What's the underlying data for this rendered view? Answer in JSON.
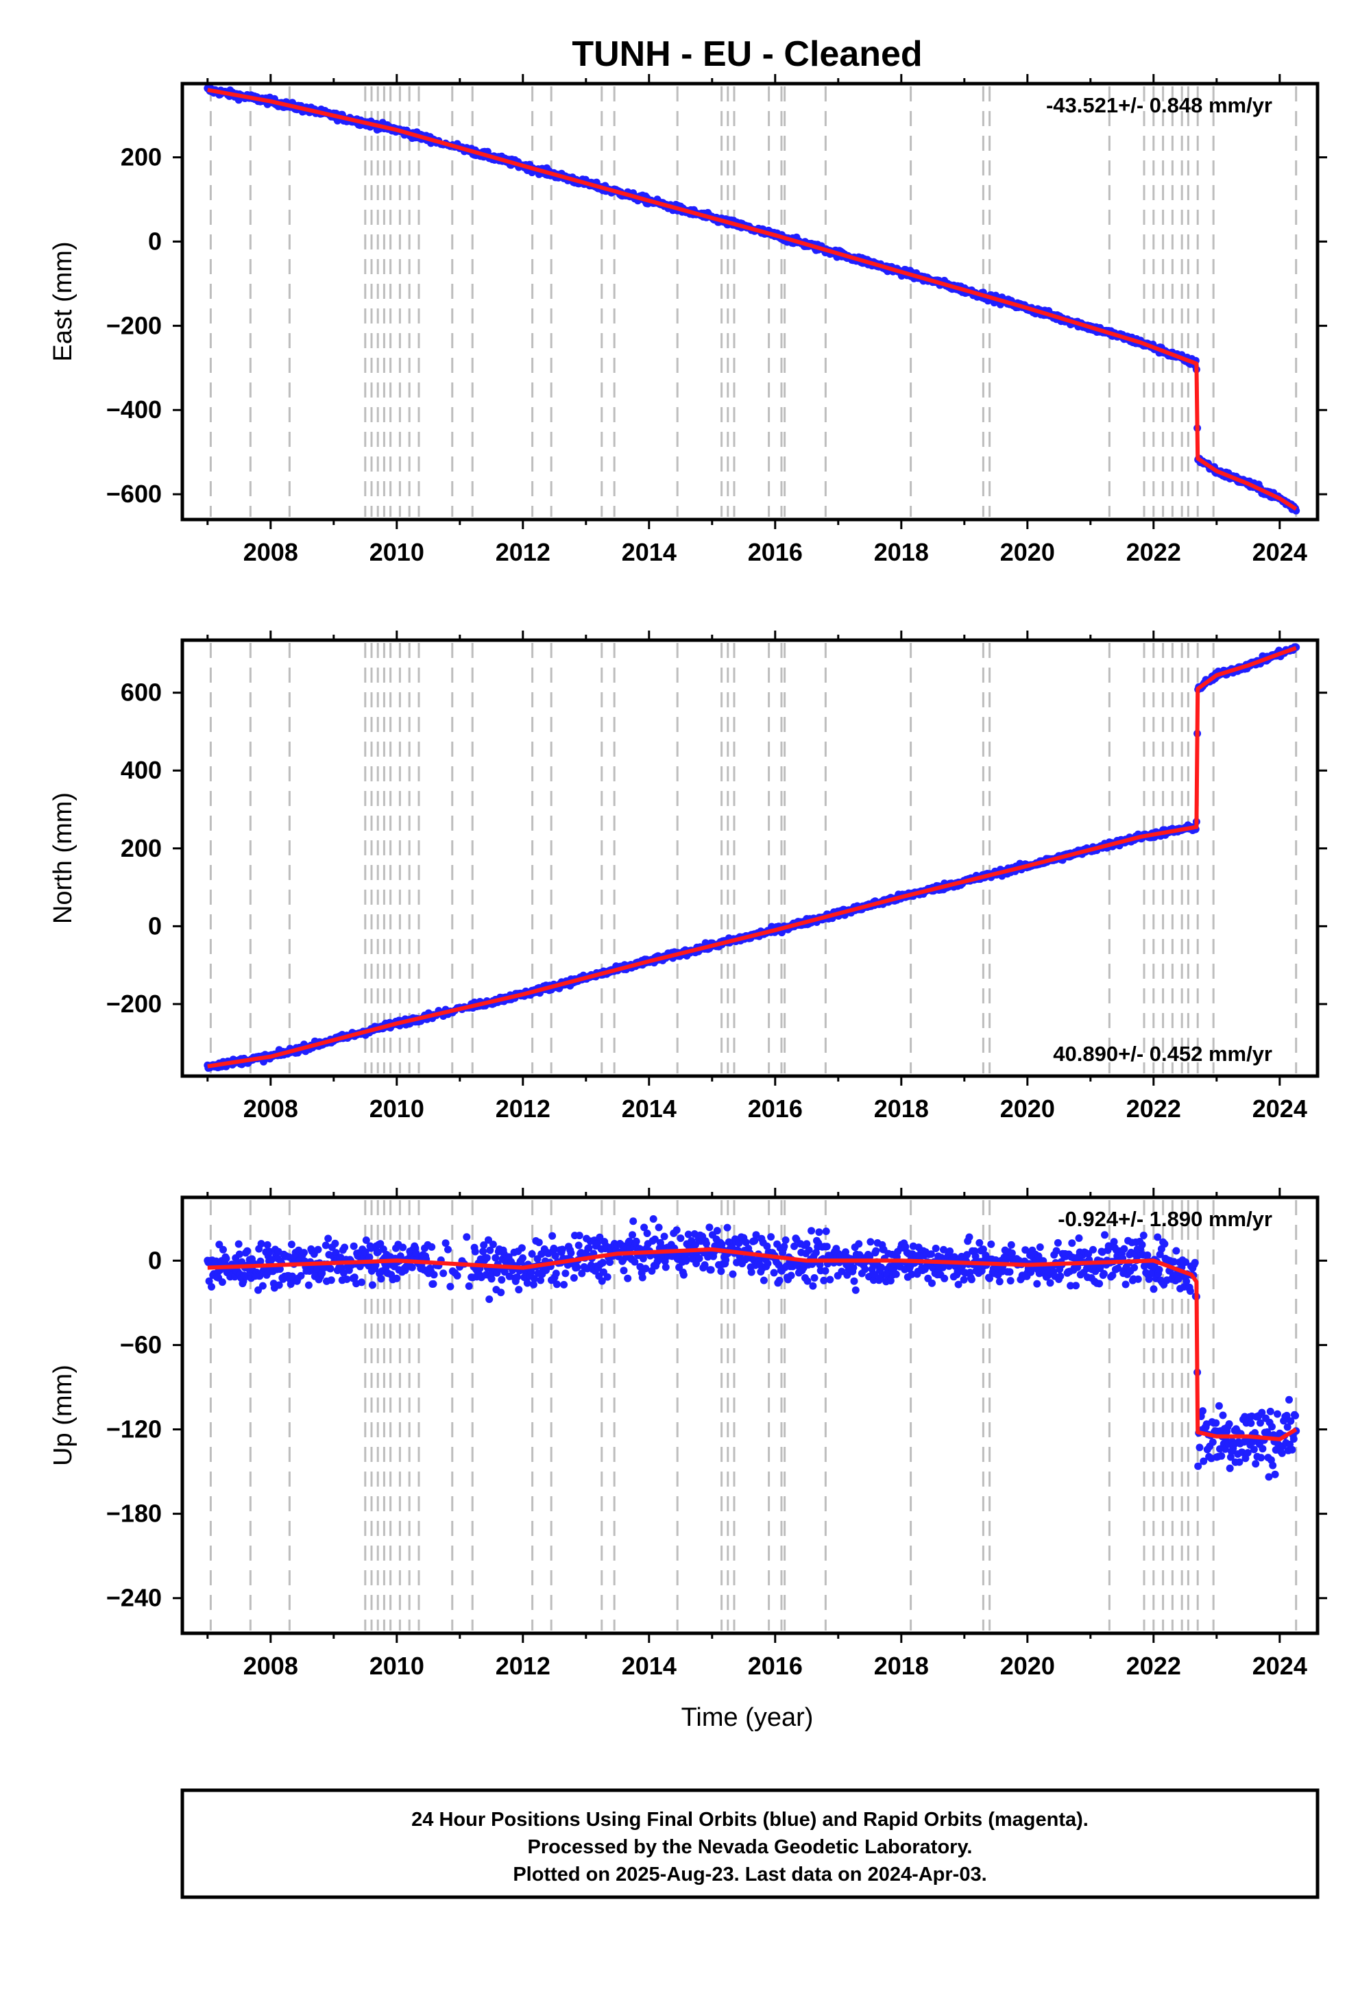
{
  "title": "TUNH  - EU - Cleaned",
  "xlabel": "Time (year)",
  "footer": {
    "line1": "24 Hour Positions Using Final Orbits (blue) and Rapid Orbits (magenta).",
    "line2": "Processed by the Nevada Geodetic Laboratory.",
    "line3": "Plotted on 2025-Aug-23. Last data on 2024-Apr-03."
  },
  "colors": {
    "data": "#1f1fff",
    "model": "#ff1a1a",
    "events": "#bdbdbd",
    "axis": "#000000"
  },
  "chart_data": [
    {
      "type": "scatter",
      "ylabel": "East (mm)",
      "rate_label": "-43.521+/- 0.848 mm/yr",
      "xlim": [
        2006.6,
        2024.6
      ],
      "ylim": [
        -660,
        375
      ],
      "x_ticks": [
        2008,
        2010,
        2012,
        2014,
        2016,
        2018,
        2020,
        2022,
        2024
      ],
      "y_ticks": [
        200,
        0,
        -200,
        -400,
        -600
      ],
      "x_tick_labels": [
        "2008",
        "2010",
        "2012",
        "2014",
        "2016",
        "2018",
        "2020",
        "2022",
        "2024"
      ],
      "y_tick_labels": [
        "200",
        "0",
        "−200",
        "−400",
        "−600"
      ],
      "trend": [
        [
          2007.0,
          360
        ],
        [
          2008.0,
          333
        ],
        [
          2010.0,
          265
        ],
        [
          2012.0,
          180
        ],
        [
          2014.0,
          97
        ],
        [
          2016.0,
          15
        ],
        [
          2018.0,
          -72
        ],
        [
          2020.0,
          -158
        ],
        [
          2021.8,
          -240
        ],
        [
          2022.68,
          -290
        ],
        [
          2022.7,
          -515
        ],
        [
          2023.0,
          -545
        ],
        [
          2023.5,
          -575
        ],
        [
          2024.0,
          -610
        ],
        [
          2024.26,
          -635
        ]
      ],
      "noise_mm": 4,
      "series": [
        {
          "name": "Final Orbits"
        }
      ]
    },
    {
      "type": "scatter",
      "ylabel": "North (mm)",
      "rate_label": "40.890+/- 0.452 mm/yr",
      "xlim": [
        2006.6,
        2024.6
      ],
      "ylim": [
        -385,
        735
      ],
      "x_ticks": [
        2008,
        2010,
        2012,
        2014,
        2016,
        2018,
        2020,
        2022,
        2024
      ],
      "y_ticks": [
        600,
        400,
        200,
        0,
        -200
      ],
      "x_tick_labels": [
        "2008",
        "2010",
        "2012",
        "2014",
        "2016",
        "2018",
        "2020",
        "2022",
        "2024"
      ],
      "y_tick_labels": [
        "600",
        "400",
        "200",
        "0",
        "−200"
      ],
      "trend": [
        [
          2007.0,
          -360
        ],
        [
          2008.0,
          -335
        ],
        [
          2010.0,
          -250
        ],
        [
          2012.0,
          -175
        ],
        [
          2014.0,
          -90
        ],
        [
          2016.0,
          -10
        ],
        [
          2018.0,
          75
        ],
        [
          2020.0,
          155
        ],
        [
          2021.8,
          230
        ],
        [
          2022.68,
          255
        ],
        [
          2022.7,
          610
        ],
        [
          2023.0,
          645
        ],
        [
          2023.5,
          670
        ],
        [
          2024.0,
          700
        ],
        [
          2024.26,
          715
        ]
      ],
      "noise_mm": 4,
      "series": [
        {
          "name": "Final Orbits"
        }
      ]
    },
    {
      "type": "scatter",
      "ylabel": "Up (mm)",
      "rate_label": "-0.924+/- 1.890 mm/yr",
      "xlim": [
        2006.6,
        2024.6
      ],
      "ylim": [
        -265,
        45
      ],
      "x_ticks": [
        2008,
        2010,
        2012,
        2014,
        2016,
        2018,
        2020,
        2022,
        2024
      ],
      "y_ticks": [
        0,
        -60,
        -120,
        -180,
        -240
      ],
      "x_tick_labels": [
        "2008",
        "2010",
        "2012",
        "2014",
        "2016",
        "2018",
        "2020",
        "2022",
        "2024"
      ],
      "y_tick_labels": [
        "0",
        "−60",
        "−120",
        "−180",
        "−240"
      ],
      "trend": [
        [
          2007.0,
          -5
        ],
        [
          2010.0,
          0
        ],
        [
          2012.0,
          -5
        ],
        [
          2013.5,
          5
        ],
        [
          2015.0,
          8
        ],
        [
          2016.5,
          0
        ],
        [
          2018.0,
          0
        ],
        [
          2020.0,
          -3
        ],
        [
          2022.0,
          0
        ],
        [
          2022.6,
          -10
        ],
        [
          2022.68,
          -15
        ],
        [
          2022.7,
          -122
        ],
        [
          2023.0,
          -125
        ],
        [
          2023.5,
          -125
        ],
        [
          2024.0,
          -127
        ],
        [
          2024.26,
          -120
        ]
      ],
      "noise_mm": 8,
      "series": [
        {
          "name": "Final Orbits"
        }
      ]
    }
  ],
  "event_years": [
    2007.05,
    2007.68,
    2008.3,
    2009.5,
    2009.6,
    2009.7,
    2009.8,
    2009.9,
    2010.05,
    2010.2,
    2010.35,
    2010.88,
    2011.2,
    2012.15,
    2012.45,
    2013.25,
    2013.45,
    2014.45,
    2015.15,
    2015.25,
    2015.35,
    2015.9,
    2016.1,
    2016.15,
    2016.8,
    2018.15,
    2019.3,
    2019.4,
    2021.3,
    2021.85,
    2022.0,
    2022.15,
    2022.3,
    2022.45,
    2022.55,
    2022.7,
    2022.95,
    2024.26
  ]
}
